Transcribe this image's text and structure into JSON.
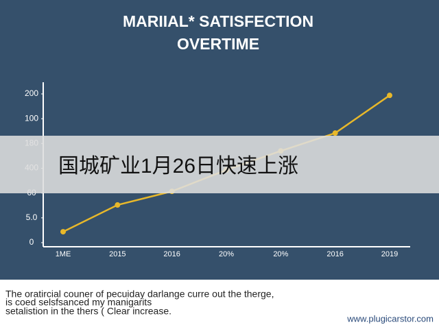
{
  "chart_data": {
    "type": "line",
    "title": [
      "MARIIAL* SATISFECTION",
      "OVERTIME"
    ],
    "categories": [
      "1ME",
      "2015",
      "2016",
      "20%",
      "20%",
      "2016",
      "2019"
    ],
    "values": [
      0.44,
      1.52,
      2.07,
      2.93,
      3.7,
      4.42,
      5.94
    ],
    "color": "#e8b82a",
    "ylim": [
      0,
      6
    ],
    "yticks": [
      {
        "value": 0,
        "label": "0"
      },
      {
        "value": 1,
        "label": "5.0"
      },
      {
        "value": 2,
        "label": "60"
      },
      {
        "value": 3,
        "label": "400"
      },
      {
        "value": 4,
        "label": "180"
      },
      {
        "value": 5,
        "label": "100"
      },
      {
        "value": 6,
        "label": "200"
      }
    ],
    "grid": false
  },
  "banner": {
    "text": "国城矿业1月26日快速上涨"
  },
  "caption": {
    "lines": [
      "The oratircial couner of pecuiday darlange curre out the therge,",
      "is coed selsfsanced my manigarits",
      "setalistion in the thers ( Clear increase."
    ],
    "url": "www.plugicarstor.com"
  }
}
